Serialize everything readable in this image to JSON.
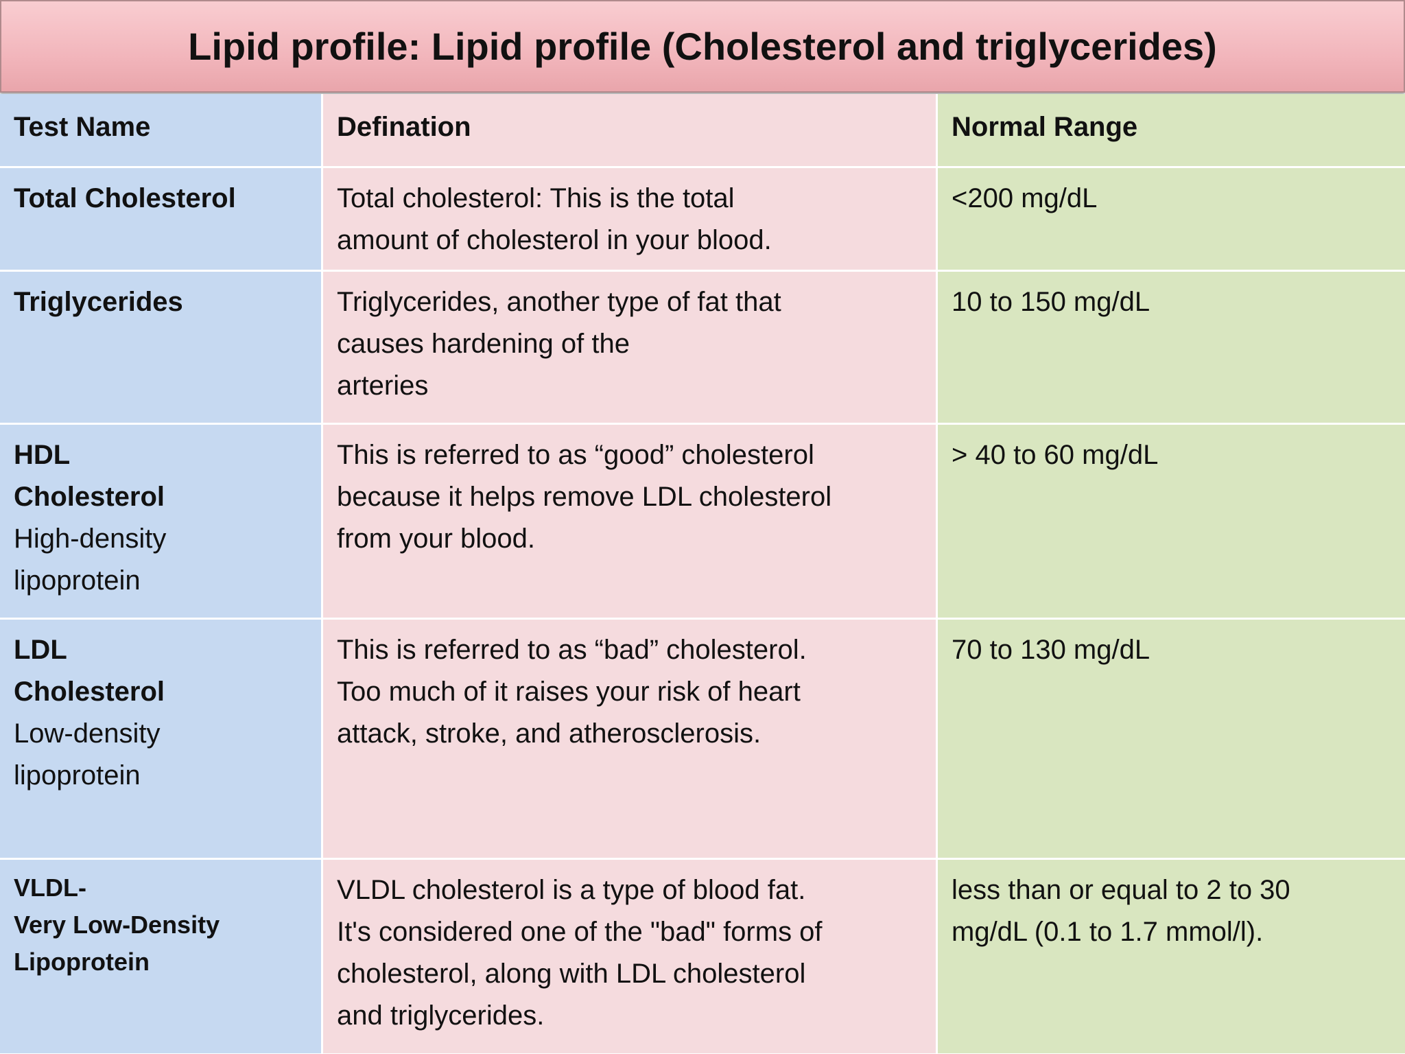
{
  "title": "Lipid profile: Lipid profile (Cholesterol and triglycerides)",
  "table": {
    "header": [
      "Test Name",
      "Defination",
      "Normal Range"
    ],
    "rows": [
      {
        "name": [
          "Total Cholesterol"
        ],
        "definition": [
          "Total cholesterol: This is the total",
          "amount of cholesterol in your blood."
        ],
        "range": [
          "<200 mg/dL"
        ]
      },
      {
        "name": [
          "Triglycerides"
        ],
        "definition": [
          "Triglycerides, another type of fat that",
          "causes hardening of the",
          "arteries"
        ],
        "range": [
          "10 to 150 mg/dL"
        ]
      },
      {
        "name": [
          "HDL",
          "Cholesterol"
        ],
        "subname": [
          "High-density",
          "lipoprotein"
        ],
        "definition": [
          "This is referred to as “good” cholesterol",
          "because it helps remove LDL cholesterol",
          "from your blood."
        ],
        "range": [
          "> 40 to 60 mg/dL"
        ]
      },
      {
        "name": [
          "LDL",
          "Cholesterol"
        ],
        "subname": [
          "Low-density",
          "lipoprotein"
        ],
        "definition": [
          "This is referred to as “bad” cholesterol.",
          "Too much of it raises your risk of heart",
          "attack, stroke, and atherosclerosis."
        ],
        "range": [
          "70 to 130 mg/dL"
        ]
      },
      {
        "name": [
          "VLDL-",
          "Very Low-Density",
          "Lipoprotein"
        ],
        "definition": [
          "VLDL cholesterol is a type of blood fat.",
          "It's considered one of the \"bad\" forms of",
          "cholesterol, along with LDL cholesterol",
          "and triglycerides."
        ],
        "range": [
          "less than or equal to 2 to 30",
          "mg/dL (0.1 to 1.7 mmol/l)."
        ]
      }
    ]
  }
}
